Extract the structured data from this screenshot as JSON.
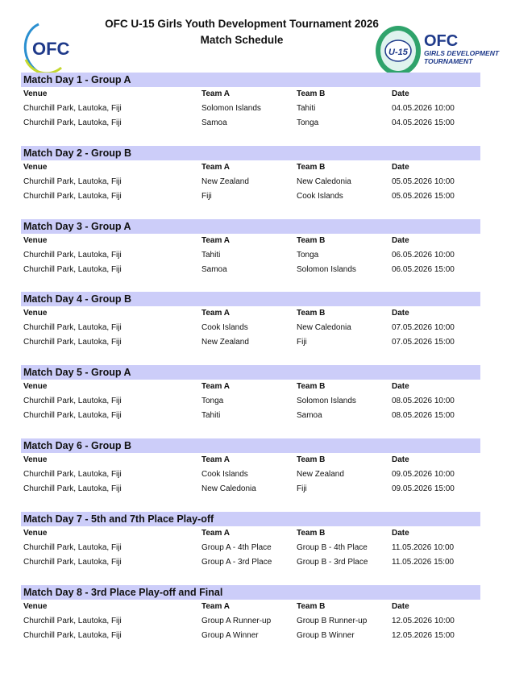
{
  "header": {
    "title": "OFC U-15 Girls Youth Development Tournament 2026",
    "subtitle": "Match Schedule",
    "logo_left_text": "OFC",
    "logo_right_text": [
      "U-15",
      "OFC",
      "GIRLS DEVELOPMENT",
      "TOURNAMENT"
    ]
  },
  "colors": {
    "section_bar": "#cccdf9",
    "ofc_blue": "#1f3a8a",
    "ofc_green": "#2fa36b"
  },
  "columns": [
    "Venue",
    "Team A",
    "Team B",
    "Date"
  ],
  "sections": [
    {
      "title": "Match Day 1 - Group A",
      "rows": [
        [
          "Churchill Park, Lautoka, Fiji",
          "Solomon Islands",
          "Tahiti",
          "04.05.2026 10:00"
        ],
        [
          "Churchill Park, Lautoka, Fiji",
          "Samoa",
          "Tonga",
          "04.05.2026 15:00"
        ]
      ]
    },
    {
      "title": "Match Day 2 - Group B",
      "rows": [
        [
          "Churchill Park, Lautoka, Fiji",
          "New Zealand",
          "New Caledonia",
          "05.05.2026 10:00"
        ],
        [
          "Churchill Park, Lautoka, Fiji",
          "Fiji",
          "Cook Islands",
          "05.05.2026 15:00"
        ]
      ]
    },
    {
      "title": "Match Day 3 - Group A",
      "rows": [
        [
          "Churchill Park, Lautoka, Fiji",
          "Tahiti",
          "Tonga",
          "06.05.2026 10:00"
        ],
        [
          "Churchill Park, Lautoka, Fiji",
          "Samoa",
          "Solomon Islands",
          "06.05.2026 15:00"
        ]
      ]
    },
    {
      "title": "Match Day 4 - Group B",
      "rows": [
        [
          "Churchill Park, Lautoka, Fiji",
          "Cook Islands",
          "New Caledonia",
          "07.05.2026 10:00"
        ],
        [
          "Churchill Park, Lautoka, Fiji",
          "New Zealand",
          "Fiji",
          "07.05.2026 15:00"
        ]
      ]
    },
    {
      "title": "Match Day 5 - Group A",
      "rows": [
        [
          "Churchill Park, Lautoka, Fiji",
          "Tonga",
          "Solomon Islands",
          "08.05.2026 10:00"
        ],
        [
          "Churchill Park, Lautoka, Fiji",
          "Tahiti",
          "Samoa",
          "08.05.2026 15:00"
        ]
      ]
    },
    {
      "title": "Match Day 6 - Group B",
      "rows": [
        [
          "Churchill Park, Lautoka, Fiji",
          "Cook Islands",
          "New Zealand",
          "09.05.2026 10:00"
        ],
        [
          "Churchill Park, Lautoka, Fiji",
          "New Caledonia",
          "Fiji",
          "09.05.2026 15:00"
        ]
      ]
    },
    {
      "title": "Match Day 7 - 5th and 7th Place Play-off",
      "rows": [
        [
          "Churchill Park, Lautoka, Fiji",
          "Group A - 4th Place",
          "Group B - 4th Place",
          "11.05.2026 10:00"
        ],
        [
          "Churchill Park, Lautoka, Fiji",
          "Group A - 3rd Place",
          "Group B - 3rd Place",
          "11.05.2026 15:00"
        ]
      ]
    },
    {
      "title": "Match Day 8 - 3rd Place Play-off and Final",
      "rows": [
        [
          "Churchill Park, Lautoka, Fiji",
          "Group A Runner-up",
          "Group B Runner-up",
          "12.05.2026 10:00"
        ],
        [
          "Churchill Park, Lautoka, Fiji",
          "Group A Winner",
          "Group B Winner",
          "12.05.2026 15:00"
        ]
      ]
    }
  ]
}
